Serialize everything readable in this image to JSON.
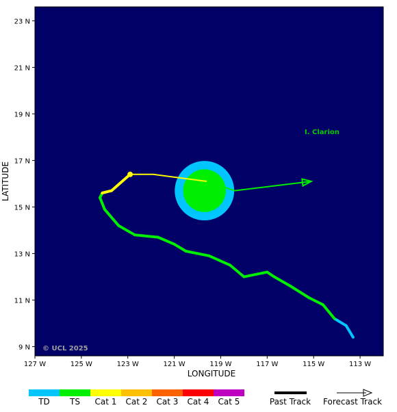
{
  "axes": {
    "y_label": "LATITUDE",
    "x_label": "LONGITUDE",
    "y_ticks": [
      "23 N",
      "21 N",
      "19 N",
      "17 N",
      "15 N",
      "13 N",
      "11 N",
      "9 N"
    ],
    "x_ticks": [
      "127 W",
      "125 W",
      "123 W",
      "121 W",
      "119 W",
      "117 W",
      "115 W",
      "113 W"
    ],
    "lon_range_w": [
      127,
      112
    ],
    "lat_range_n": [
      8.6,
      23.6
    ]
  },
  "map": {
    "ocean_color": "#000066",
    "island_label": "I. Clarion",
    "island_color": "#00cc00",
    "copyright": "© UCL 2025"
  },
  "legend": {
    "categories": [
      {
        "label": "TD",
        "color": "#00c5ff"
      },
      {
        "label": "TS",
        "color": "#00ee00"
      },
      {
        "label": "Cat 1",
        "color": "#ffff00"
      },
      {
        "label": "Cat 2",
        "color": "#ffc000"
      },
      {
        "label": "Cat 3",
        "color": "#ff6000"
      },
      {
        "label": "Cat 4",
        "color": "#ff0000"
      },
      {
        "label": "Cat 5",
        "color": "#c000c0"
      }
    ],
    "past_track": "Past Track",
    "forecast_track": "Forecast Track"
  },
  "storm": {
    "current_position": {
      "lon": 119.7,
      "lat": 15.7
    },
    "wind_radii": [
      {
        "category": "TD",
        "color": "#00c5ff",
        "radius_deg": 1.28
      },
      {
        "category": "TS",
        "color": "#00ee00",
        "radius_deg": 0.92
      }
    ],
    "past_track": [
      {
        "lon": 113.3,
        "lat": 9.4,
        "color": "#00c5ff"
      },
      {
        "lon": 113.6,
        "lat": 9.9,
        "color": "#00c5ff"
      },
      {
        "lon": 114.1,
        "lat": 10.2,
        "color": "#00ee00"
      },
      {
        "lon": 114.6,
        "lat": 10.8,
        "color": "#00ee00"
      },
      {
        "lon": 115.2,
        "lat": 11.1,
        "color": "#00ee00"
      },
      {
        "lon": 116.0,
        "lat": 11.6,
        "color": "#00ee00"
      },
      {
        "lon": 116.7,
        "lat": 12.0,
        "color": "#00ee00"
      },
      {
        "lon": 117.0,
        "lat": 12.2,
        "color": "#00ee00"
      },
      {
        "lon": 118.0,
        "lat": 12.0,
        "color": "#00ee00"
      },
      {
        "lon": 118.6,
        "lat": 12.5,
        "color": "#00ee00"
      },
      {
        "lon": 119.5,
        "lat": 12.9,
        "color": "#00ee00"
      },
      {
        "lon": 120.5,
        "lat": 13.1,
        "color": "#00ee00"
      },
      {
        "lon": 121.0,
        "lat": 13.4,
        "color": "#00ee00"
      },
      {
        "lon": 121.7,
        "lat": 13.7,
        "color": "#00ee00"
      },
      {
        "lon": 122.7,
        "lat": 13.8,
        "color": "#00ee00"
      },
      {
        "lon": 123.4,
        "lat": 14.2,
        "color": "#00ee00"
      },
      {
        "lon": 124.0,
        "lat": 14.9,
        "color": "#00ee00"
      },
      {
        "lon": 124.2,
        "lat": 15.4,
        "color": "#00ee00"
      },
      {
        "lon": 124.1,
        "lat": 15.6,
        "color": "#ffff00"
      },
      {
        "lon": 123.7,
        "lat": 15.7,
        "color": "#ffff00"
      },
      {
        "lon": 122.9,
        "lat": 16.4,
        "color": "#ffff00"
      },
      {
        "lon": 121.9,
        "lat": 16.4,
        "color": "#ffff00"
      },
      {
        "lon": 119.6,
        "lat": 16.1,
        "color": "#ffff00"
      }
    ],
    "forecast_track": [
      {
        "lon": 119.6,
        "lat": 16.1
      },
      {
        "lon": 118.4,
        "lat": 15.7
      },
      {
        "lon": 115.1,
        "lat": 16.1
      }
    ],
    "current_marker": {
      "lon": 122.9,
      "lat": 16.4,
      "color": "#ffff00"
    }
  }
}
